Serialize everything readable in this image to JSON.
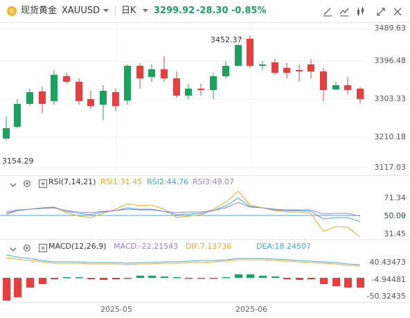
{
  "header": {
    "symbol_name": "现货黄金",
    "symbol_code": "XAUUSD",
    "dropdown_icon": "caret-down-icon",
    "interval": "日K",
    "price": "3299.92",
    "change": "-28.30",
    "change_pct": "-0.85%",
    "tools": [
      "drawing-tool-icon",
      "indicator-icon",
      "candle-style-icon",
      "fullscreen-icon",
      "close-icon"
    ]
  },
  "main_chart": {
    "y_labels": [
      "3489.63",
      "3396.48",
      "3303.33",
      "3210.18",
      "3117.03"
    ],
    "high_label": "3452.37",
    "low_label": "3154.29"
  },
  "rsi": {
    "title": "RSI(7,14,21)",
    "rsi1": "RSI1:31.45",
    "rsi2": "RSI2:44.76",
    "rsi3": "RSI3:49.07",
    "y_labels": [
      "71.34",
      "50.00",
      "31.45"
    ],
    "line_value": "50.09",
    "colors": {
      "rsi1": "#f5a623",
      "rsi2": "#3da8d8",
      "rsi3": "#9b7fd6"
    }
  },
  "macd": {
    "title": "MACD(12,26,9)",
    "macd": "MACD:-22.21543",
    "dif": "DIF:7.13736",
    "dea": "DEA:18.24507",
    "y_labels": [
      "40.43473",
      "-4.94481",
      "-50.32435"
    ],
    "colors": {
      "macd": "#9b7fd6",
      "dif": "#f5a623",
      "dea": "#3da8d8"
    }
  },
  "x_axis": [
    "2025-05",
    "2025-06"
  ],
  "colors": {
    "up": "#1aa260",
    "down": "#e63f3f",
    "accent": "#1aa260"
  }
}
